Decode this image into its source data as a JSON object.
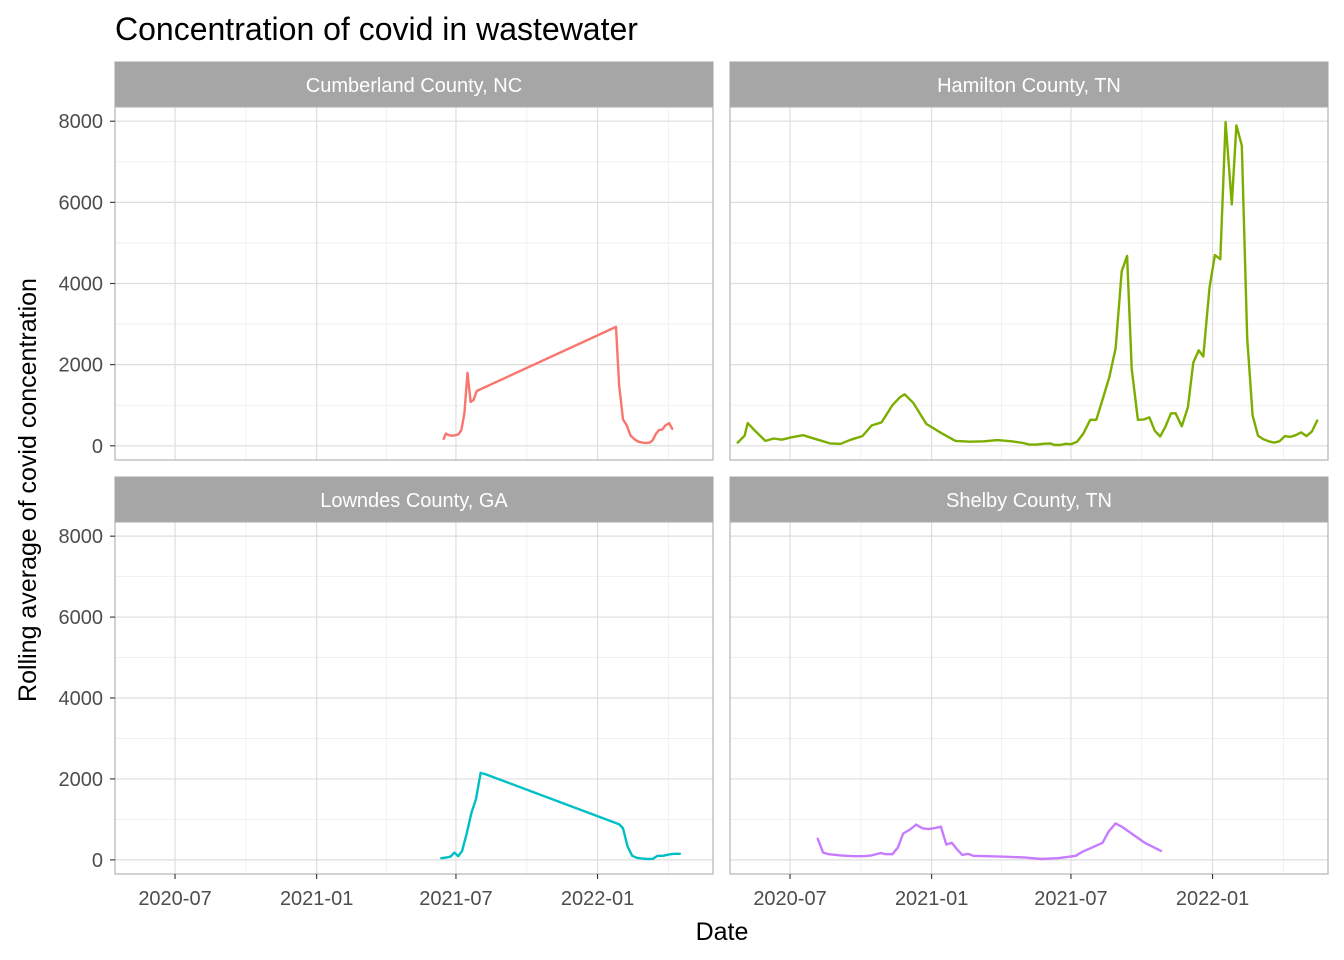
{
  "chart_data": {
    "type": "line",
    "title": "Concentration of covid in wastewater",
    "xlabel": "Date",
    "ylabel": "Rolling average of covid concentration",
    "x_type": "date",
    "xlim": [
      "2020-04-14",
      "2022-05-31"
    ],
    "ylim": [
      -350,
      8350
    ],
    "x_ticks": [
      "2020-07-01",
      "2021-01-01",
      "2021-07-01",
      "2022-01-01"
    ],
    "x_tick_labels": [
      "2020-07",
      "2021-01",
      "2021-07",
      "2022-01"
    ],
    "y_ticks": [
      0,
      2000,
      4000,
      6000,
      8000
    ],
    "y_tick_labels": [
      "0",
      "2000",
      "4000",
      "6000",
      "8000"
    ],
    "grid": true,
    "legend": "none",
    "facets": [
      {
        "name": "Cumberland County, NC",
        "color": "#F8766D",
        "points": [
          [
            "2021-06-15",
            170
          ],
          [
            "2021-06-18",
            300
          ],
          [
            "2021-06-22",
            260
          ],
          [
            "2021-06-26",
            250
          ],
          [
            "2021-06-30",
            260
          ],
          [
            "2021-07-04",
            280
          ],
          [
            "2021-07-08",
            380
          ],
          [
            "2021-07-12",
            800
          ],
          [
            "2021-07-16",
            1800
          ],
          [
            "2021-07-20",
            1080
          ],
          [
            "2021-07-24",
            1130
          ],
          [
            "2021-07-28",
            1350
          ],
          [
            "2022-01-25",
            2930
          ],
          [
            "2022-01-29",
            1500
          ],
          [
            "2022-02-03",
            650
          ],
          [
            "2022-02-08",
            500
          ],
          [
            "2022-02-13",
            250
          ],
          [
            "2022-02-18",
            160
          ],
          [
            "2022-02-23",
            100
          ],
          [
            "2022-02-28",
            80
          ],
          [
            "2022-03-05",
            70
          ],
          [
            "2022-03-10",
            80
          ],
          [
            "2022-03-14",
            150
          ],
          [
            "2022-03-18",
            300
          ],
          [
            "2022-03-22",
            390
          ],
          [
            "2022-03-26",
            400
          ],
          [
            "2022-03-30",
            500
          ],
          [
            "2022-04-04",
            560
          ],
          [
            "2022-04-08",
            420
          ]
        ]
      },
      {
        "name": "Hamilton County, TN",
        "color": "#7CAE00",
        "points": [
          [
            "2020-04-24",
            80
          ],
          [
            "2020-05-03",
            250
          ],
          [
            "2020-05-07",
            560
          ],
          [
            "2020-05-15",
            400
          ],
          [
            "2020-05-30",
            120
          ],
          [
            "2020-06-10",
            180
          ],
          [
            "2020-06-20",
            150
          ],
          [
            "2020-07-03",
            210
          ],
          [
            "2020-07-18",
            260
          ],
          [
            "2020-08-06",
            150
          ],
          [
            "2020-08-22",
            60
          ],
          [
            "2020-09-05",
            50
          ],
          [
            "2020-09-18",
            150
          ],
          [
            "2020-10-03",
            240
          ],
          [
            "2020-10-15",
            500
          ],
          [
            "2020-10-28",
            580
          ],
          [
            "2020-11-11",
            1000
          ],
          [
            "2020-11-21",
            1200
          ],
          [
            "2020-11-27",
            1270
          ],
          [
            "2020-12-08",
            1060
          ],
          [
            "2020-12-25",
            540
          ],
          [
            "2021-01-13",
            320
          ],
          [
            "2021-02-01",
            120
          ],
          [
            "2021-02-20",
            100
          ],
          [
            "2021-03-10",
            110
          ],
          [
            "2021-03-27",
            140
          ],
          [
            "2021-04-15",
            110
          ],
          [
            "2021-04-30",
            70
          ],
          [
            "2021-05-08",
            30
          ],
          [
            "2021-05-17",
            30
          ],
          [
            "2021-05-26",
            50
          ],
          [
            "2021-06-04",
            60
          ],
          [
            "2021-06-10",
            20
          ],
          [
            "2021-06-17",
            20
          ],
          [
            "2021-06-24",
            50
          ],
          [
            "2021-07-01",
            40
          ],
          [
            "2021-07-09",
            100
          ],
          [
            "2021-07-17",
            300
          ],
          [
            "2021-07-26",
            640
          ],
          [
            "2021-08-03",
            640
          ],
          [
            "2021-08-12",
            1200
          ],
          [
            "2021-08-20",
            1700
          ],
          [
            "2021-08-28",
            2400
          ],
          [
            "2021-09-05",
            4300
          ],
          [
            "2021-09-12",
            4680
          ],
          [
            "2021-09-18",
            1900
          ],
          [
            "2021-09-26",
            640
          ],
          [
            "2021-10-04",
            650
          ],
          [
            "2021-10-11",
            700
          ],
          [
            "2021-10-18",
            370
          ],
          [
            "2021-10-25",
            230
          ],
          [
            "2021-11-01",
            480
          ],
          [
            "2021-11-08",
            800
          ],
          [
            "2021-11-14",
            800
          ],
          [
            "2021-11-22",
            480
          ],
          [
            "2021-11-30",
            950
          ],
          [
            "2021-12-07",
            2050
          ],
          [
            "2021-12-14",
            2350
          ],
          [
            "2021-12-20",
            2200
          ],
          [
            "2021-12-28",
            3900
          ],
          [
            "2022-01-04",
            4700
          ],
          [
            "2022-01-11",
            4600
          ],
          [
            "2022-01-18",
            7980
          ],
          [
            "2022-01-26",
            5950
          ],
          [
            "2022-02-01",
            7900
          ],
          [
            "2022-02-08",
            7400
          ],
          [
            "2022-02-15",
            2650
          ],
          [
            "2022-02-22",
            750
          ],
          [
            "2022-03-01",
            250
          ],
          [
            "2022-03-08",
            160
          ],
          [
            "2022-03-15",
            110
          ],
          [
            "2022-03-22",
            80
          ],
          [
            "2022-03-29",
            110
          ],
          [
            "2022-04-05",
            240
          ],
          [
            "2022-04-12",
            220
          ],
          [
            "2022-04-19",
            260
          ],
          [
            "2022-04-26",
            330
          ],
          [
            "2022-05-03",
            240
          ],
          [
            "2022-05-10",
            350
          ],
          [
            "2022-05-17",
            620
          ]
        ]
      },
      {
        "name": "Lowndes County, GA",
        "color": "#00BFC4",
        "points": [
          [
            "2021-06-12",
            40
          ],
          [
            "2021-06-19",
            60
          ],
          [
            "2021-06-24",
            80
          ],
          [
            "2021-06-29",
            180
          ],
          [
            "2021-07-04",
            90
          ],
          [
            "2021-07-09",
            220
          ],
          [
            "2021-07-15",
            650
          ],
          [
            "2021-07-21",
            1150
          ],
          [
            "2021-07-27",
            1500
          ],
          [
            "2021-08-02",
            2150
          ],
          [
            "2021-08-08",
            2120
          ],
          [
            "2022-01-29",
            880
          ],
          [
            "2022-02-03",
            780
          ],
          [
            "2022-02-09",
            330
          ],
          [
            "2022-02-15",
            100
          ],
          [
            "2022-02-21",
            50
          ],
          [
            "2022-02-28",
            30
          ],
          [
            "2022-03-07",
            20
          ],
          [
            "2022-03-14",
            25
          ],
          [
            "2022-03-20",
            100
          ],
          [
            "2022-03-27",
            100
          ],
          [
            "2022-04-03",
            130
          ],
          [
            "2022-04-10",
            150
          ],
          [
            "2022-04-18",
            150
          ]
        ]
      },
      {
        "name": "Shelby County, TN",
        "color": "#C77CFF",
        "points": [
          [
            "2020-08-06",
            520
          ],
          [
            "2020-08-13",
            180
          ],
          [
            "2020-08-20",
            140
          ],
          [
            "2020-09-05",
            110
          ],
          [
            "2020-09-21",
            90
          ],
          [
            "2020-10-05",
            90
          ],
          [
            "2020-10-15",
            110
          ],
          [
            "2020-10-27",
            170
          ],
          [
            "2020-11-02",
            140
          ],
          [
            "2020-11-11",
            140
          ],
          [
            "2020-11-18",
            300
          ],
          [
            "2020-11-25",
            650
          ],
          [
            "2020-12-04",
            750
          ],
          [
            "2020-12-12",
            870
          ],
          [
            "2020-12-20",
            780
          ],
          [
            "2020-12-28",
            760
          ],
          [
            "2021-01-06",
            790
          ],
          [
            "2021-01-13",
            820
          ],
          [
            "2021-01-20",
            380
          ],
          [
            "2021-01-27",
            420
          ],
          [
            "2021-02-03",
            260
          ],
          [
            "2021-02-10",
            120
          ],
          [
            "2021-02-17",
            150
          ],
          [
            "2021-02-24",
            100
          ],
          [
            "2021-04-01",
            80
          ],
          [
            "2021-05-01",
            60
          ],
          [
            "2021-05-23",
            20
          ],
          [
            "2021-06-14",
            40
          ],
          [
            "2021-06-30",
            80
          ],
          [
            "2021-07-07",
            100
          ],
          [
            "2021-07-16",
            200
          ],
          [
            "2021-07-28",
            300
          ],
          [
            "2021-08-11",
            420
          ],
          [
            "2021-08-19",
            700
          ],
          [
            "2021-08-28",
            900
          ],
          [
            "2021-09-06",
            810
          ],
          [
            "2021-10-05",
            420
          ],
          [
            "2021-10-26",
            220
          ]
        ]
      }
    ]
  }
}
